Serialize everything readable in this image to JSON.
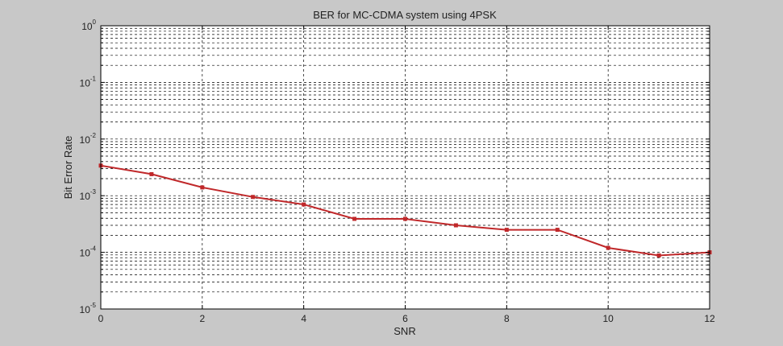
{
  "window": {
    "background": "#c8c8c8"
  },
  "chart_data": {
    "type": "line",
    "title": "BER for MC-CDMA system using 4PSK",
    "xlabel": "SNR",
    "ylabel": "Bit Error Rate",
    "xlim": [
      0,
      12
    ],
    "ylim": [
      1e-05,
      1
    ],
    "yscale": "log",
    "grid": true,
    "x_ticks": [
      0,
      2,
      4,
      6,
      8,
      10,
      12
    ],
    "y_tick_labels": [
      {
        "base": "10",
        "exp": "0",
        "value": 1
      },
      {
        "base": "10",
        "exp": "-1",
        "value": 0.1
      },
      {
        "base": "10",
        "exp": "-2",
        "value": 0.01
      },
      {
        "base": "10",
        "exp": "-3",
        "value": 0.001
      },
      {
        "base": "10",
        "exp": "-4",
        "value": 0.0001
      },
      {
        "base": "10",
        "exp": "-5",
        "value": 1e-05
      }
    ],
    "series": [
      {
        "color": "#c0282a",
        "marker": "square",
        "x": [
          0,
          1,
          2,
          3,
          4,
          5,
          6,
          7,
          8,
          9,
          10,
          11,
          12
        ],
        "y": [
          0.0034,
          0.0024,
          0.0014,
          0.00095,
          0.0007,
          0.00039,
          0.00039,
          0.0003,
          0.00025,
          0.00025,
          0.00012,
          8.8e-05,
          0.0001
        ]
      }
    ]
  }
}
